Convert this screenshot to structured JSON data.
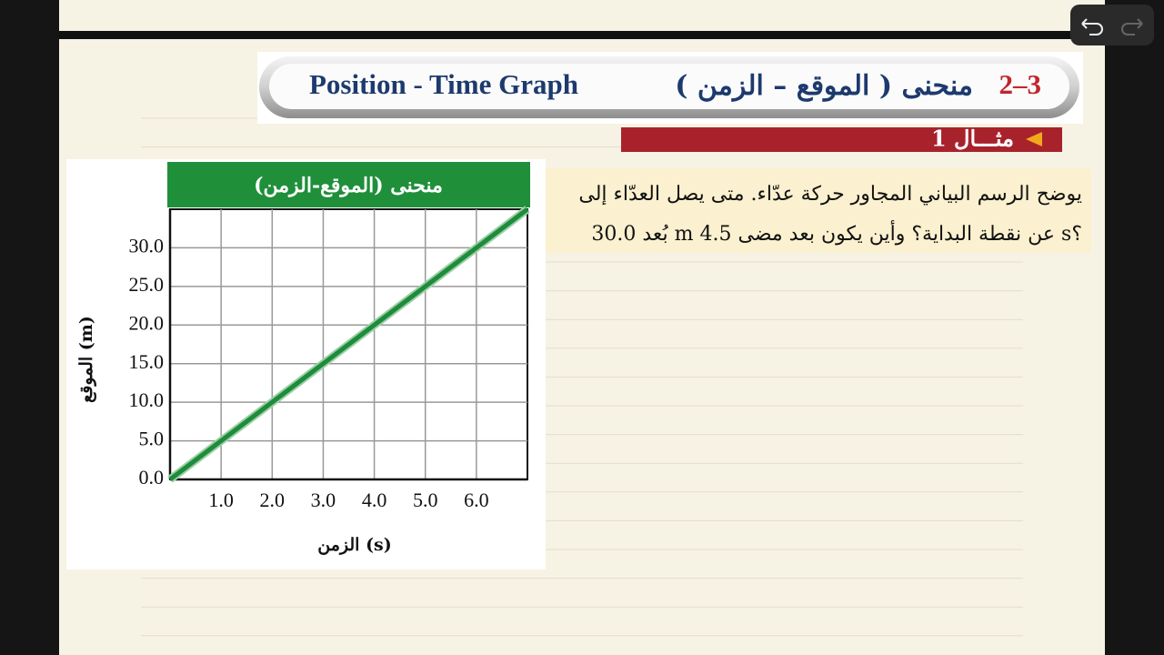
{
  "header": {
    "number": "2–3",
    "arabic_title": "منحنى ( الموقع – الزمن )",
    "english_title": "Position - Time Graph"
  },
  "example": {
    "label": "مثـــال 1"
  },
  "question": {
    "lines": [
      "يوضح الرسم البياني المجاور حركة عدّاء. متى يصل العدّاء إلى",
      "بُعد 30.0 m عن نقطة البداية؟ وأين يكون بعد مضى 4.5 s؟"
    ]
  },
  "chart_data": {
    "type": "line",
    "title": "منحنى (الموقع-الزمن)",
    "x_label": "الزمن (s)",
    "y_label": "الموقع (m)",
    "x": [
      0,
      7
    ],
    "values": [
      0,
      35
    ],
    "color": "#1e8c3a",
    "xlim": [
      0,
      7
    ],
    "ylim": [
      0,
      35
    ],
    "xticks": [
      {
        "value": 1,
        "label": "1.0"
      },
      {
        "value": 2,
        "label": "2.0"
      },
      {
        "value": 3,
        "label": "3.0"
      },
      {
        "value": 4,
        "label": "4.0"
      },
      {
        "value": 5,
        "label": "5.0"
      },
      {
        "value": 6,
        "label": "6.0"
      }
    ],
    "yticks": [
      {
        "value": 0,
        "label": "0.0"
      },
      {
        "value": 5,
        "label": "5.0"
      },
      {
        "value": 10,
        "label": "10.0"
      },
      {
        "value": 15,
        "label": "15.0"
      },
      {
        "value": 20,
        "label": "20.0"
      },
      {
        "value": 25,
        "label": "25.0"
      },
      {
        "value": 30,
        "label": "30.0"
      }
    ],
    "grid": true
  }
}
